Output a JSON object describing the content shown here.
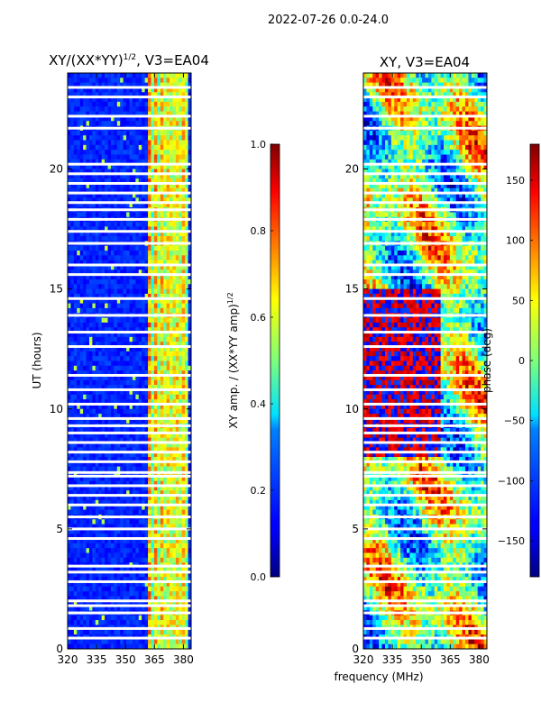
{
  "suptitle": "2022-07-26 0.0-24.0",
  "shared_xlabel": "frequency (MHz)",
  "chart_data": [
    {
      "type": "heatmap",
      "title": "XY/(XX*YY)",
      "title_sup": "1/2",
      "title_suffix": ", V3=EA04",
      "ylabel": "UT (hours)",
      "xlim": [
        320,
        384
      ],
      "ylim": [
        0,
        24
      ],
      "xticks": [
        "320",
        "335",
        "350",
        "365",
        "380"
      ],
      "xtick_values": [
        320,
        335,
        350,
        365,
        380
      ],
      "yticks": [
        "0",
        "5",
        "10",
        "15",
        "20"
      ],
      "ytick_values": [
        0,
        5,
        10,
        15,
        20
      ],
      "colorbar": {
        "label": "XY amp. / (XX*YY amp)",
        "label_sup": "1/2",
        "range": [
          0.0,
          1.0
        ],
        "ticks": [
          "0.0",
          "0.2",
          "0.4",
          "0.6",
          "0.8",
          "1.0"
        ],
        "tick_values": [
          0.0,
          0.2,
          0.4,
          0.6,
          0.8,
          1.0
        ]
      },
      "blank_rows_hours": [
        0.45,
        0.85,
        1.5,
        1.8,
        2.0,
        2.8,
        3.2,
        3.45,
        4.6,
        5.0,
        5.5,
        6.0,
        6.4,
        6.8,
        7.2,
        7.35,
        7.8,
        8.2,
        8.6,
        9.0,
        9.3,
        9.6,
        10.2,
        10.8,
        11.4,
        12.6,
        13.2,
        13.9,
        14.6,
        15.6,
        16.0,
        16.9,
        17.4,
        17.9,
        18.3,
        18.6,
        19.0,
        19.4,
        19.8,
        20.2,
        21.7,
        22.2,
        23.0,
        23.4
      ]
    },
    {
      "type": "heatmap",
      "title": "XY, V3=EA04",
      "ylabel": "",
      "xlim": [
        320,
        384
      ],
      "ylim": [
        0,
        24
      ],
      "xticks": [
        "320",
        "335",
        "350",
        "365",
        "380"
      ],
      "xtick_values": [
        320,
        335,
        350,
        365,
        380
      ],
      "yticks": [
        "0",
        "5",
        "10",
        "15",
        "20"
      ],
      "ytick_values": [
        0,
        5,
        10,
        15,
        20
      ],
      "colorbar": {
        "label": "phase (deg)",
        "range": [
          -180,
          180
        ],
        "ticks": [
          "−150",
          "−100",
          "−50",
          "0",
          "50",
          "100",
          "150"
        ],
        "tick_values": [
          -150,
          -100,
          -50,
          0,
          50,
          100,
          150
        ]
      },
      "blank_rows_hours": [
        0.45,
        0.85,
        1.5,
        1.8,
        2.0,
        2.8,
        3.2,
        3.45,
        4.6,
        5.0,
        5.5,
        6.0,
        6.4,
        6.8,
        7.2,
        7.35,
        7.8,
        8.2,
        8.6,
        9.0,
        9.3,
        9.6,
        10.2,
        10.8,
        11.4,
        12.6,
        13.2,
        13.9,
        14.6,
        15.6,
        16.0,
        16.9,
        17.4,
        17.9,
        18.3,
        18.6,
        19.0,
        19.4,
        19.8,
        20.2,
        21.7,
        22.2,
        23.0,
        23.4
      ]
    }
  ]
}
